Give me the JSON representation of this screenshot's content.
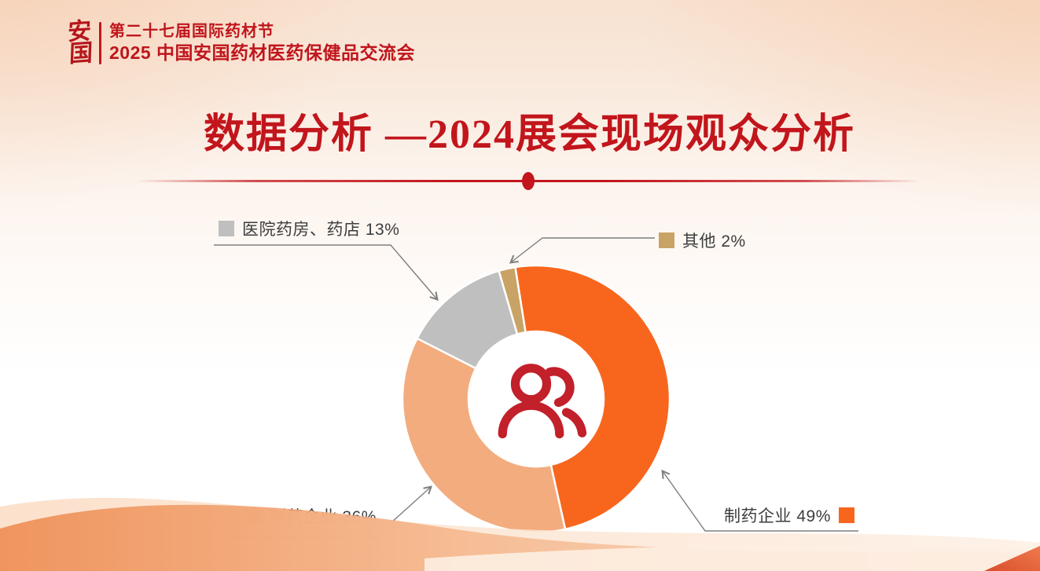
{
  "header": {
    "seal_char1": "安",
    "seal_char2": "国",
    "line1": "第二十七届国际药材节",
    "line2": "2025 中国安国药材医药保健品交流会"
  },
  "title": {
    "text": "数据分析 —2024展会现场观众分析"
  },
  "chart_data": {
    "type": "pie",
    "subtype": "donut",
    "title": "2024展会现场观众分析",
    "unit": "%",
    "direction": "clockwise",
    "start_angle_deg": -9,
    "donut_outer_radius_px": 170,
    "donut_inner_radius_px": 86,
    "legend_position": "callouts-around-chart",
    "center_icon": "people-icon",
    "slices": [
      {
        "label": "制药企业",
        "value": 49,
        "text": "制药企业 49%",
        "color": "#F8661E"
      },
      {
        "label": "制药企业",
        "value": 36,
        "text": "制药企业 36%",
        "color": "#F3AC7E"
      },
      {
        "label": "医院药房、药店",
        "value": 13,
        "text": "医院药房、药店 13%",
        "color": "#BFBFBF"
      },
      {
        "label": "其他",
        "value": 2,
        "text": "其他 2%",
        "color": "#C9A365"
      }
    ]
  },
  "colors": {
    "accent_red": "#C2151C",
    "icon_red": "#C2202A",
    "divider_red": "#C3161D",
    "leader_line_gray": "#7F7F7F",
    "legend_text": "#3D3D3D"
  }
}
